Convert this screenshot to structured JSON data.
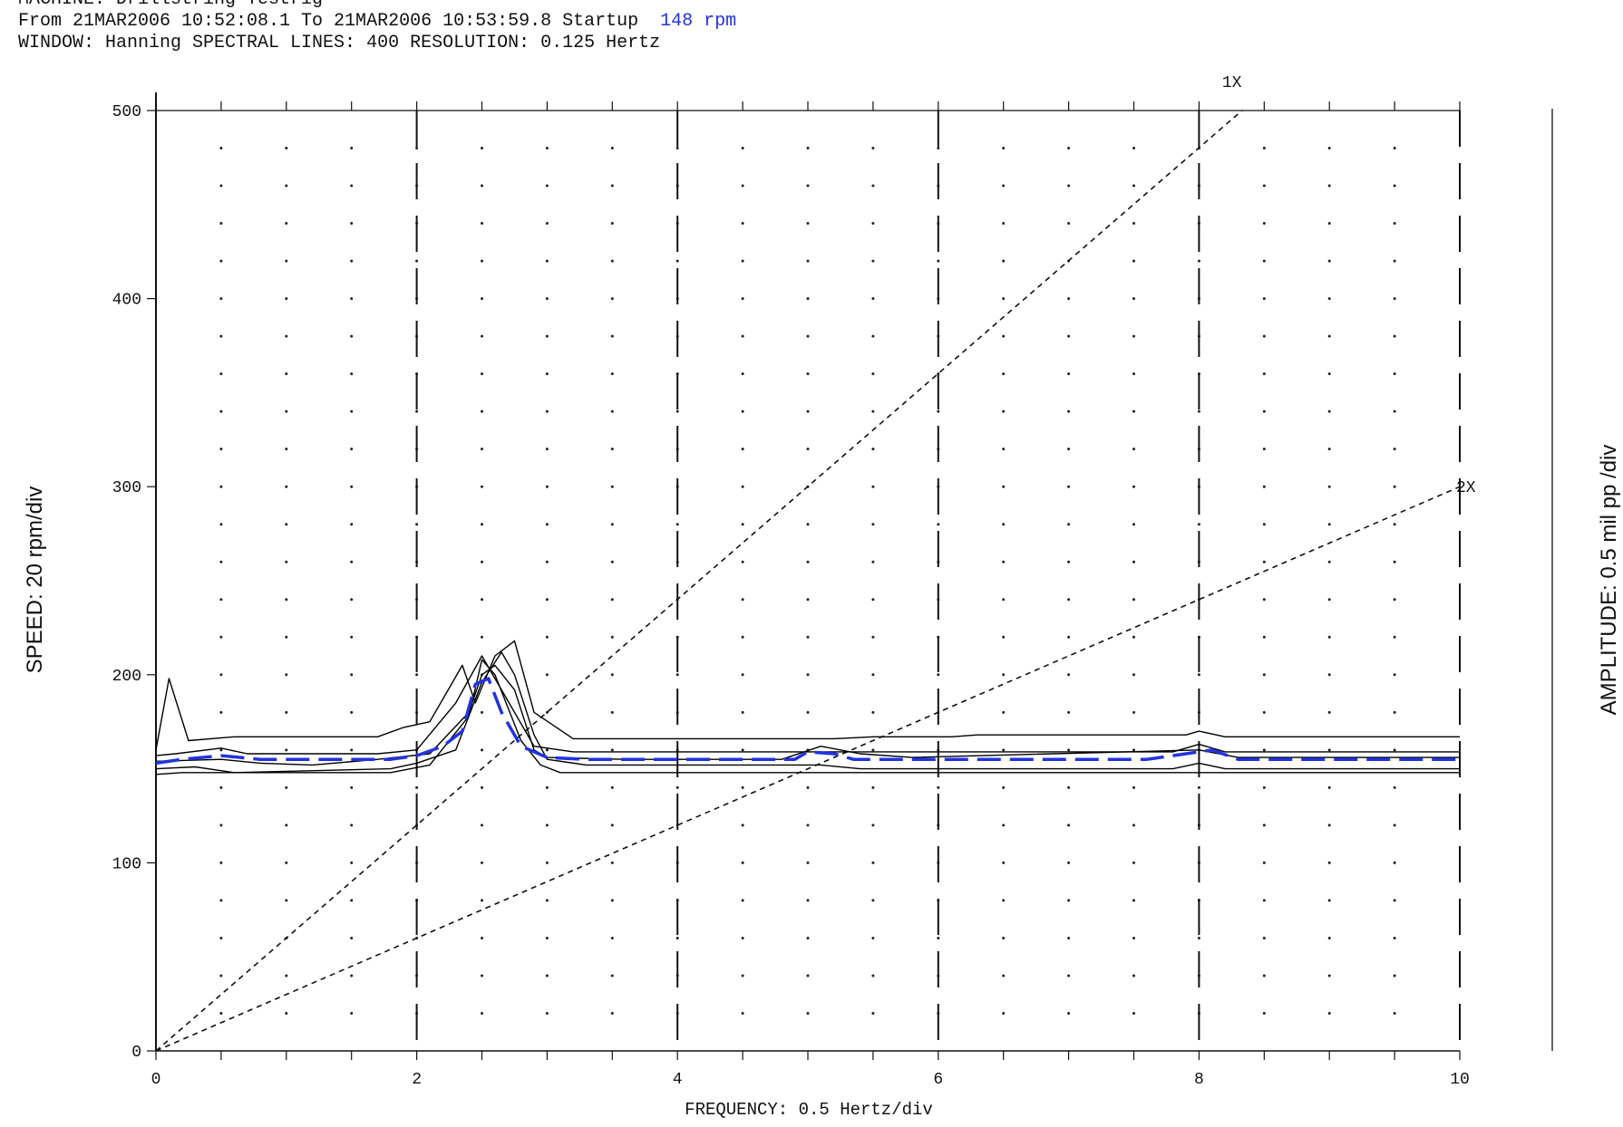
{
  "header": {
    "line1": "MACHINE: Drillstring Testrig",
    "line2_prefix": "From 21MAR2006 10:52:08.1 To 21MAR2006 10:53:59.8 Startup",
    "line2_rpm": "148 rpm",
    "line3": "WINDOW: Hanning SPECTRAL LINES: 400 RESOLUTION: 0.125 Hertz"
  },
  "chart_data": {
    "type": "line",
    "xlabel": "FREQUENCY: 0.5 Hertz/div",
    "ylabel": "SPEED: 20 rpm/div",
    "ylabel_right": "AMPLITUDE: 0.5 mil pp /div",
    "xlim": [
      0,
      10
    ],
    "ylim": [
      0,
      500
    ],
    "x_ticks": [
      "0",
      "2",
      "4",
      "6",
      "8",
      "10"
    ],
    "y_ticks": [
      "0",
      "100",
      "200",
      "300",
      "400",
      "500"
    ],
    "order_lines": [
      {
        "name": "1X",
        "points": [
          [
            0,
            0
          ],
          [
            8.33,
            500
          ]
        ]
      },
      {
        "name": "2X",
        "points": [
          [
            0,
            0
          ],
          [
            10,
            300
          ]
        ]
      }
    ],
    "series": [
      {
        "color": "#000000",
        "points": [
          [
            0,
            160
          ],
          [
            0.1,
            198
          ],
          [
            0.25,
            165
          ],
          [
            0.6,
            167
          ],
          [
            1.7,
            167
          ],
          [
            1.9,
            172
          ],
          [
            2.1,
            175
          ],
          [
            2.35,
            205
          ],
          [
            2.45,
            185
          ],
          [
            2.6,
            210
          ],
          [
            2.75,
            218
          ],
          [
            2.9,
            180
          ],
          [
            3.2,
            166
          ],
          [
            5.2,
            166
          ],
          [
            5.5,
            167
          ],
          [
            6.1,
            167
          ],
          [
            6.3,
            168
          ],
          [
            7.9,
            168
          ],
          [
            8.0,
            170
          ],
          [
            8.2,
            167
          ],
          [
            10,
            167
          ]
        ]
      },
      {
        "color": "#000000",
        "points": [
          [
            0,
            157
          ],
          [
            0.15,
            158
          ],
          [
            0.5,
            161
          ],
          [
            0.7,
            158
          ],
          [
            1.7,
            158
          ],
          [
            2.0,
            160
          ],
          [
            2.3,
            185
          ],
          [
            2.5,
            210
          ],
          [
            2.6,
            198
          ],
          [
            2.7,
            186
          ],
          [
            2.9,
            162
          ],
          [
            3.2,
            159
          ],
          [
            7.8,
            159
          ],
          [
            8.0,
            163
          ],
          [
            8.2,
            159
          ],
          [
            10,
            159
          ]
        ]
      },
      {
        "color": "#000000",
        "points": [
          [
            0,
            154
          ],
          [
            0.5,
            155
          ],
          [
            0.8,
            153
          ],
          [
            1.2,
            152
          ],
          [
            1.7,
            155
          ],
          [
            2.1,
            158
          ],
          [
            2.4,
            180
          ],
          [
            2.5,
            200
          ],
          [
            2.6,
            205
          ],
          [
            2.75,
            192
          ],
          [
            2.9,
            160
          ],
          [
            3.0,
            156
          ],
          [
            3.6,
            155
          ],
          [
            4.8,
            155
          ],
          [
            5.1,
            162
          ],
          [
            5.4,
            158
          ],
          [
            5.8,
            156
          ],
          [
            8.0,
            160
          ],
          [
            8.3,
            156
          ],
          [
            10,
            156
          ]
        ]
      },
      {
        "color": "#000000",
        "points": [
          [
            0,
            150
          ],
          [
            0.3,
            151
          ],
          [
            0.6,
            148
          ],
          [
            1.8,
            150
          ],
          [
            2.0,
            153
          ],
          [
            2.3,
            160
          ],
          [
            2.5,
            196
          ],
          [
            2.65,
            212
          ],
          [
            2.75,
            200
          ],
          [
            2.9,
            168
          ],
          [
            3.0,
            155
          ],
          [
            3.3,
            152
          ],
          [
            5.1,
            152
          ],
          [
            5.4,
            150
          ],
          [
            7.8,
            150
          ],
          [
            8.0,
            153
          ],
          [
            8.2,
            150
          ],
          [
            10,
            150
          ]
        ]
      },
      {
        "color": "#000000",
        "points": [
          [
            0,
            147
          ],
          [
            0.2,
            148
          ],
          [
            1.8,
            148
          ],
          [
            2.1,
            152
          ],
          [
            2.4,
            178
          ],
          [
            2.5,
            208
          ],
          [
            2.6,
            200
          ],
          [
            2.8,
            165
          ],
          [
            2.95,
            152
          ],
          [
            3.1,
            148
          ],
          [
            10,
            148
          ]
        ]
      },
      {
        "color": "#2233dd",
        "dashed": true,
        "points": [
          [
            0,
            153
          ],
          [
            0.2,
            155
          ],
          [
            0.5,
            157
          ],
          [
            0.8,
            155
          ],
          [
            1.8,
            155
          ],
          [
            2.0,
            157
          ],
          [
            2.2,
            162
          ],
          [
            2.35,
            170
          ],
          [
            2.45,
            195
          ],
          [
            2.55,
            198
          ],
          [
            2.65,
            180
          ],
          [
            2.8,
            162
          ],
          [
            3.0,
            156
          ],
          [
            3.3,
            155
          ],
          [
            3.8,
            155
          ],
          [
            4.9,
            155
          ],
          [
            5.0,
            159
          ],
          [
            5.2,
            158
          ],
          [
            5.35,
            155
          ],
          [
            7.6,
            155
          ],
          [
            7.9,
            158
          ],
          [
            8.1,
            160
          ],
          [
            8.3,
            155
          ],
          [
            10,
            155
          ]
        ]
      }
    ]
  }
}
